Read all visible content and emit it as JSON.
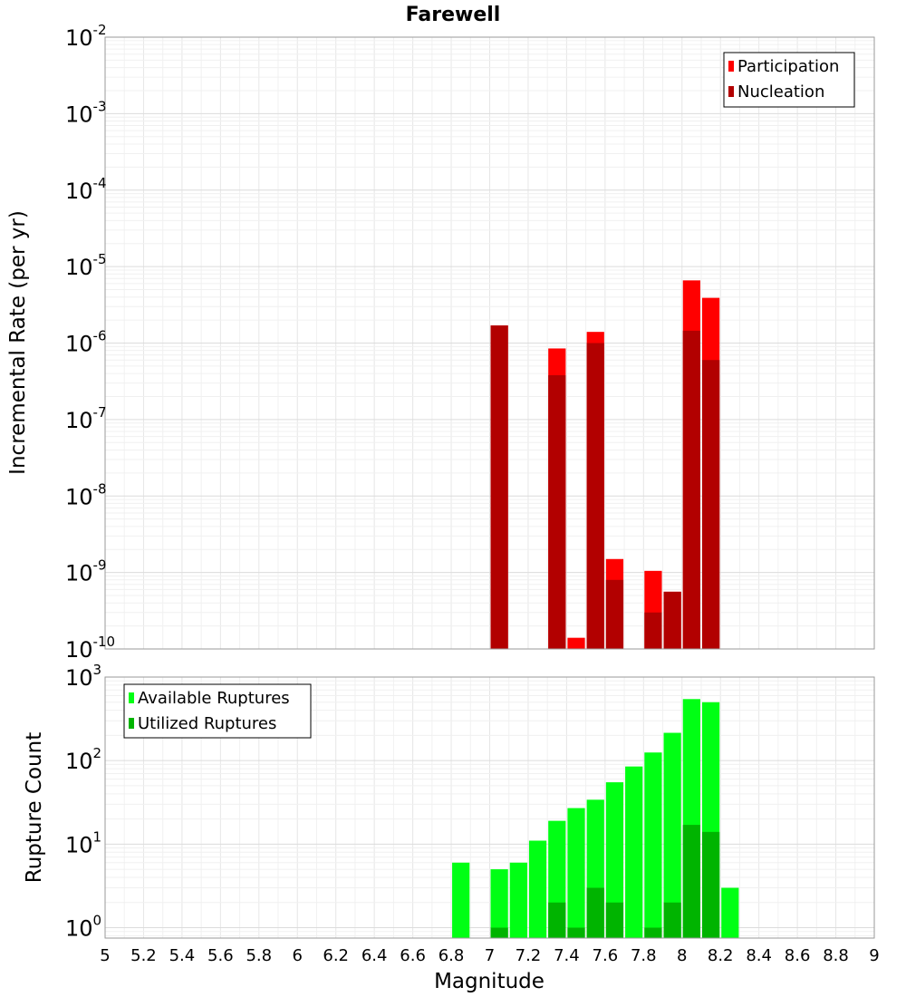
{
  "chart_data": [
    {
      "type": "bar",
      "id": "top",
      "title": "Farewell",
      "xlabel": "",
      "ylabel": "Incremental Rate (per yr)",
      "yscale": "log",
      "ylim": [
        1e-10,
        0.01
      ],
      "xlim": [
        5,
        9
      ],
      "bar_width": 0.1,
      "legend_position": "top-right",
      "series": [
        {
          "name": "Participation",
          "color": "#ff0000",
          "points": [
            [
              7.05,
              1.7e-06
            ],
            [
              7.35,
              8.5e-07
            ],
            [
              7.45,
              1.4e-10
            ],
            [
              7.55,
              1.4e-06
            ],
            [
              7.65,
              1.5e-09
            ],
            [
              7.85,
              1.05e-09
            ],
            [
              7.95,
              5.6e-10
            ],
            [
              8.05,
              6.6e-06
            ],
            [
              8.15,
              3.9e-06
            ]
          ]
        },
        {
          "name": "Nucleation",
          "color": "#b20000",
          "points": [
            [
              7.05,
              1.7e-06
            ],
            [
              7.35,
              3.8e-07
            ],
            [
              7.55,
              1e-06
            ],
            [
              7.65,
              8e-10
            ],
            [
              7.85,
              3e-10
            ],
            [
              7.95,
              5.6e-10
            ],
            [
              8.05,
              1.45e-06
            ],
            [
              8.15,
              6e-07
            ]
          ]
        }
      ]
    },
    {
      "type": "bar",
      "id": "bottom",
      "title": "",
      "xlabel": "Magnitude",
      "ylabel": "Rupture Count",
      "yscale": "log",
      "ylim": [
        0.75,
        1000
      ],
      "xlim": [
        5,
        9
      ],
      "bar_width": 0.1,
      "legend_position": "top-left",
      "series": [
        {
          "name": "Available Ruptures",
          "color": "#00ff14",
          "points": [
            [
              6.85,
              6
            ],
            [
              7.05,
              5
            ],
            [
              7.15,
              6
            ],
            [
              7.25,
              11
            ],
            [
              7.35,
              19
            ],
            [
              7.45,
              27
            ],
            [
              7.55,
              34
            ],
            [
              7.65,
              55
            ],
            [
              7.75,
              85
            ],
            [
              7.85,
              125
            ],
            [
              7.95,
              215
            ],
            [
              8.05,
              545
            ],
            [
              8.15,
              500
            ],
            [
              8.25,
              3
            ]
          ]
        },
        {
          "name": "Utilized Ruptures",
          "color": "#00b400",
          "points": [
            [
              7.05,
              1
            ],
            [
              7.35,
              2
            ],
            [
              7.45,
              1
            ],
            [
              7.55,
              3
            ],
            [
              7.65,
              2
            ],
            [
              7.85,
              1
            ],
            [
              7.95,
              2
            ],
            [
              8.05,
              17
            ],
            [
              8.15,
              14
            ]
          ]
        }
      ]
    }
  ],
  "x_ticks": [
    "5",
    "5.2",
    "5.4",
    "5.6",
    "5.8",
    "6",
    "6.2",
    "6.4",
    "6.6",
    "6.8",
    "7",
    "7.2",
    "7.4",
    "7.6",
    "7.8",
    "8",
    "8.2",
    "8.4",
    "8.6",
    "8.8",
    "9"
  ],
  "top_y_ticks": [
    {
      "exp": -2,
      "base": "10",
      "sup": "-2"
    },
    {
      "exp": -3,
      "base": "10",
      "sup": "-3"
    },
    {
      "exp": -4,
      "base": "10",
      "sup": "-4"
    },
    {
      "exp": -5,
      "base": "10",
      "sup": "-5"
    },
    {
      "exp": -6,
      "base": "10",
      "sup": "-6"
    },
    {
      "exp": -7,
      "base": "10",
      "sup": "-7"
    },
    {
      "exp": -8,
      "base": "10",
      "sup": "-8"
    },
    {
      "exp": -9,
      "base": "10",
      "sup": "-9"
    },
    {
      "exp": -10,
      "base": "10",
      "sup": "-10"
    }
  ],
  "bottom_y_ticks": [
    {
      "exp": 3,
      "base": "10",
      "sup": "3"
    },
    {
      "exp": 2,
      "base": "10",
      "sup": "2"
    },
    {
      "exp": 1,
      "base": "10",
      "sup": "1"
    },
    {
      "exp": 0,
      "base": "10",
      "sup": "0"
    }
  ]
}
